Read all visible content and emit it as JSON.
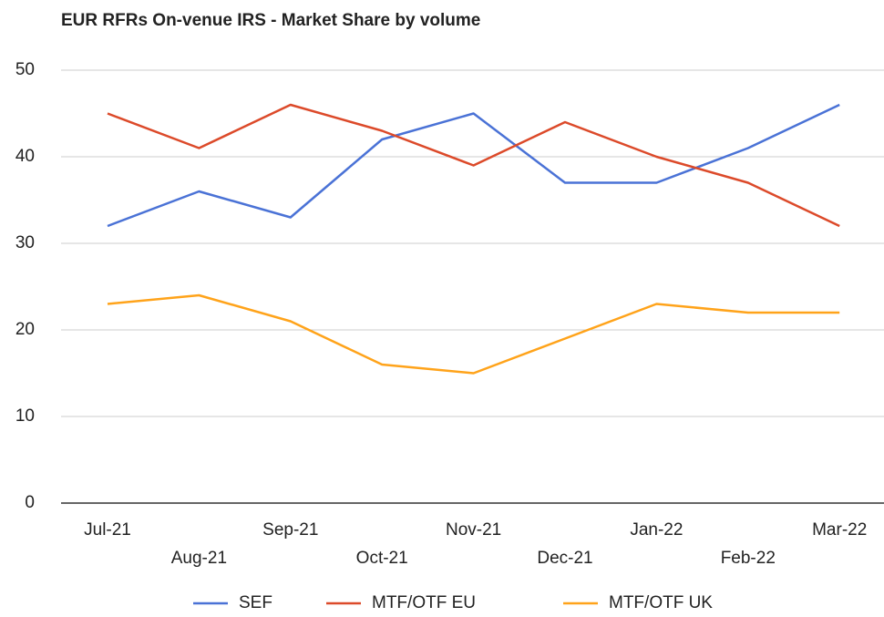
{
  "chart_data": {
    "type": "line",
    "title": "EUR RFRs On-venue IRS - Market Share by volume",
    "categories": [
      "Jul-21",
      "Aug-21",
      "Sep-21",
      "Oct-21",
      "Nov-21",
      "Dec-21",
      "Jan-22",
      "Feb-22",
      "Mar-22"
    ],
    "series": [
      {
        "name": "SEF",
        "color": "#4a72d6",
        "values": [
          32,
          36,
          33,
          42,
          45,
          37,
          37,
          41,
          46
        ]
      },
      {
        "name": "MTF/OTF EU",
        "color": "#dc4a2a",
        "values": [
          45,
          41,
          46,
          43,
          39,
          44,
          40,
          37,
          32
        ]
      },
      {
        "name": "MTF/OTF UK",
        "color": "#ffa31a",
        "values": [
          23,
          24,
          21,
          16,
          15,
          19,
          23,
          22,
          22
        ]
      }
    ],
    "ylim": [
      0,
      50
    ],
    "yticks": [
      0,
      10,
      20,
      30,
      40,
      50
    ],
    "grid": true,
    "legend": "bottom"
  }
}
